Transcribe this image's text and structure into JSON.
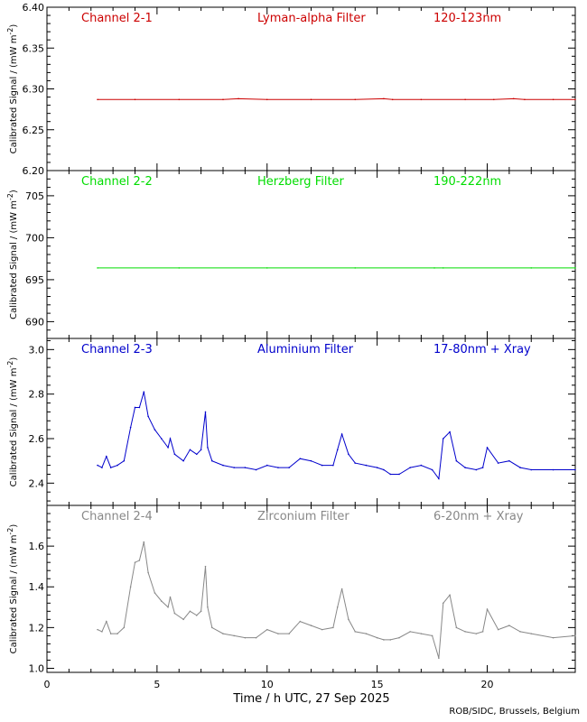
{
  "xlabel": "Time / h UTC, 27 Sep 2025",
  "credit": "ROB/SIDC, Brussels, Belgium",
  "chart_data": [
    {
      "type": "line",
      "channel": "Channel 2-1",
      "filter": "Lyman-alpha Filter",
      "band": "120-123nm",
      "color": "#cc0000",
      "ylabel": "Calibrated Signal / (mW m",
      "ylabel_sup": "-2",
      "ylim": [
        6.2,
        6.4
      ],
      "yticks": [
        6.2,
        6.25,
        6.3,
        6.35,
        6.4
      ],
      "yticklabels": [
        "6.20",
        "6.25",
        "6.30",
        "6.35",
        "6.40"
      ],
      "series": [
        {
          "name": "Channel 2-1",
          "x": [
            2.3,
            4,
            6,
            8,
            8.7,
            10,
            12,
            14,
            15.3,
            15.7,
            17,
            19,
            20.3,
            21.2,
            21.7,
            23,
            24
          ],
          "y": [
            6.287,
            6.287,
            6.287,
            6.287,
            6.288,
            6.287,
            6.287,
            6.287,
            6.288,
            6.287,
            6.287,
            6.287,
            6.287,
            6.288,
            6.287,
            6.287,
            6.287
          ]
        }
      ]
    },
    {
      "type": "line",
      "channel": "Channel 2-2",
      "filter": "Herzberg Filter",
      "band": "190-222nm",
      "color": "#00dd00",
      "ylabel": "Calibrated Signal / (mW m",
      "ylabel_sup": "-2",
      "ylim": [
        688,
        708
      ],
      "yticks": [
        690,
        695,
        700,
        705
      ],
      "yticklabels": [
        "690",
        "695",
        "700",
        "705"
      ],
      "series": [
        {
          "name": "Channel 2-2",
          "x": [
            2.3,
            6,
            10,
            14,
            17.6,
            18,
            22,
            24
          ],
          "y": [
            696.4,
            696.4,
            696.4,
            696.4,
            696.4,
            696.4,
            696.4,
            696.4
          ]
        }
      ]
    },
    {
      "type": "line",
      "channel": "Channel 2-3",
      "filter": "Aluminium Filter",
      "band": "17-80nm + Xray",
      "color": "#0000cc",
      "ylabel": "Calibrated Signal / (mW m",
      "ylabel_sup": "-2",
      "ylim": [
        2.3,
        3.05
      ],
      "yticks": [
        2.4,
        2.6,
        2.8,
        3.0
      ],
      "yticklabels": [
        "2.4",
        "2.6",
        "2.8",
        "3.0"
      ],
      "series": [
        {
          "name": "Channel 2-3",
          "x": [
            2.3,
            2.5,
            2.7,
            2.9,
            3.2,
            3.5,
            3.8,
            4.0,
            4.2,
            4.4,
            4.6,
            4.9,
            5.2,
            5.5,
            5.6,
            5.8,
            6.2,
            6.5,
            6.8,
            7.0,
            7.2,
            7.3,
            7.5,
            8.0,
            8.5,
            9.0,
            9.5,
            10.0,
            10.5,
            11.0,
            11.5,
            12.0,
            12.5,
            13.0,
            13.2,
            13.4,
            13.7,
            14.0,
            14.5,
            15.0,
            15.3,
            15.6,
            16.0,
            16.5,
            17.0,
            17.5,
            17.8,
            18.0,
            18.3,
            18.6,
            19.0,
            19.5,
            19.8,
            20.0,
            20.5,
            21.0,
            21.5,
            22.0,
            23.0,
            24.0
          ],
          "y": [
            2.48,
            2.47,
            2.52,
            2.47,
            2.48,
            2.5,
            2.65,
            2.74,
            2.74,
            2.81,
            2.7,
            2.64,
            2.6,
            2.56,
            2.6,
            2.53,
            2.5,
            2.55,
            2.53,
            2.55,
            2.72,
            2.56,
            2.5,
            2.48,
            2.47,
            2.47,
            2.46,
            2.48,
            2.47,
            2.47,
            2.51,
            2.5,
            2.48,
            2.48,
            2.55,
            2.62,
            2.53,
            2.49,
            2.48,
            2.47,
            2.46,
            2.44,
            2.44,
            2.47,
            2.48,
            2.46,
            2.42,
            2.6,
            2.63,
            2.5,
            2.47,
            2.46,
            2.47,
            2.56,
            2.49,
            2.5,
            2.47,
            2.46,
            2.46,
            2.46
          ]
        }
      ]
    },
    {
      "type": "line",
      "channel": "Channel 2-4",
      "filter": "Zirconium Filter",
      "band": "6-20nm + Xray",
      "color": "#888888",
      "ylabel": "Calibrated Signal / (mW m",
      "ylabel_sup": "-2",
      "ylim": [
        0.98,
        1.8
      ],
      "yticks": [
        1.0,
        1.2,
        1.4,
        1.6
      ],
      "yticklabels": [
        "1.0",
        "1.2",
        "1.4",
        "1.6"
      ],
      "series": [
        {
          "name": "Channel 2-4",
          "x": [
            2.3,
            2.5,
            2.7,
            2.9,
            3.2,
            3.5,
            3.8,
            4.0,
            4.2,
            4.4,
            4.6,
            4.9,
            5.2,
            5.5,
            5.6,
            5.8,
            6.2,
            6.5,
            6.8,
            7.0,
            7.2,
            7.3,
            7.5,
            8.0,
            8.5,
            9.0,
            9.5,
            10.0,
            10.5,
            11.0,
            11.5,
            12.0,
            12.5,
            13.0,
            13.2,
            13.4,
            13.7,
            14.0,
            14.5,
            15.0,
            15.3,
            15.6,
            16.0,
            16.5,
            17.0,
            17.5,
            17.8,
            18.0,
            18.3,
            18.6,
            19.0,
            19.5,
            19.8,
            20.0,
            20.5,
            21.0,
            21.5,
            22.0,
            23.0,
            24.0
          ],
          "y": [
            1.19,
            1.18,
            1.23,
            1.17,
            1.17,
            1.2,
            1.4,
            1.52,
            1.53,
            1.62,
            1.47,
            1.37,
            1.33,
            1.3,
            1.35,
            1.27,
            1.24,
            1.28,
            1.26,
            1.28,
            1.5,
            1.3,
            1.2,
            1.17,
            1.16,
            1.15,
            1.15,
            1.19,
            1.17,
            1.17,
            1.23,
            1.21,
            1.19,
            1.2,
            1.3,
            1.39,
            1.24,
            1.18,
            1.17,
            1.15,
            1.14,
            1.14,
            1.15,
            1.18,
            1.17,
            1.16,
            1.05,
            1.32,
            1.36,
            1.2,
            1.18,
            1.17,
            1.18,
            1.29,
            1.19,
            1.21,
            1.18,
            1.17,
            1.15,
            1.16
          ]
        }
      ]
    }
  ],
  "xaxis": {
    "xlim": [
      0,
      24
    ],
    "ticks": [
      0,
      5,
      10,
      15,
      20
    ],
    "ticklabels": [
      "0",
      "5",
      "10",
      "15",
      "20"
    ]
  }
}
